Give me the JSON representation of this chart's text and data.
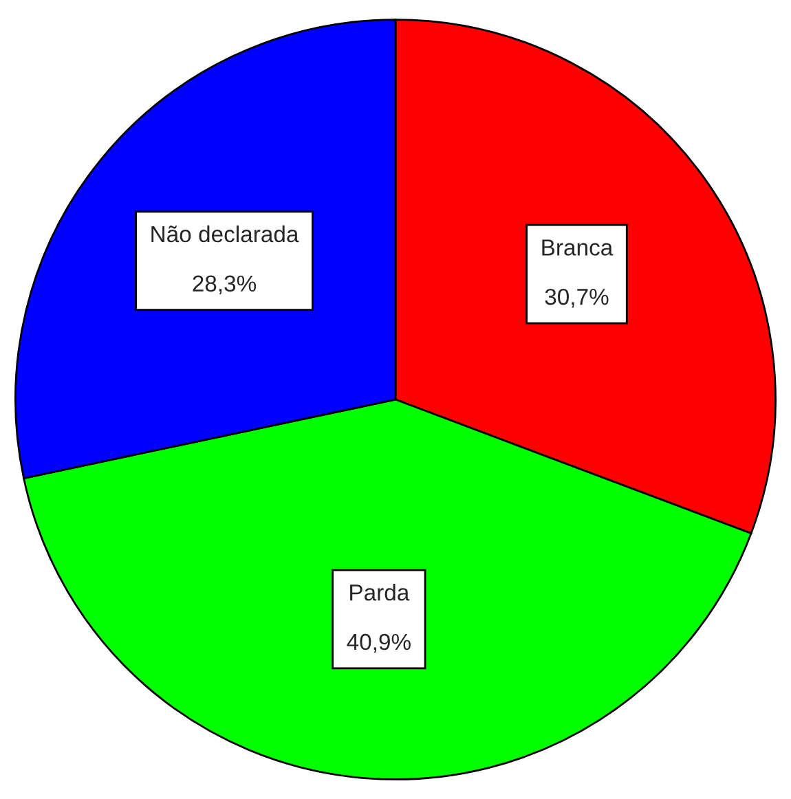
{
  "chart_data": {
    "type": "pie",
    "categories": [
      "Branca",
      "Parda",
      "Não declarada"
    ],
    "values": [
      30.7,
      40.9,
      28.3
    ],
    "value_labels": [
      "30,7%",
      "40,9%",
      "28,3%"
    ],
    "colors": [
      "#ff0000",
      "#00ff00",
      "#0000ff"
    ]
  }
}
